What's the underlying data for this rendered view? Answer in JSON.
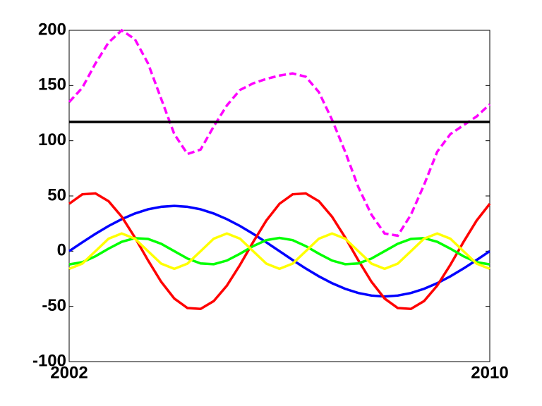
{
  "chart_data": {
    "type": "line",
    "x": [
      2002,
      2002.25,
      2002.5,
      2002.75,
      2003,
      2003.25,
      2003.5,
      2003.75,
      2004,
      2004.25,
      2004.5,
      2004.75,
      2005,
      2005.25,
      2005.5,
      2005.75,
      2006,
      2006.25,
      2006.5,
      2006.75,
      2007,
      2007.25,
      2007.5,
      2007.75,
      2008,
      2008.25,
      2008.5,
      2008.75,
      2009,
      2009.25,
      2009.5,
      2009.75,
      2010
    ],
    "series": [
      {
        "color": "#0000ff",
        "style": "solid",
        "values": [
          0,
          8,
          15.7,
          22.8,
          29,
          34.1,
          37.9,
          40.2,
          41,
          40.2,
          37.9,
          34.1,
          29,
          22.8,
          15.7,
          8,
          0,
          -8,
          -15.7,
          -22.8,
          -29,
          -34.1,
          -37.9,
          -40.2,
          -41,
          -40.2,
          -37.9,
          -34.1,
          -29,
          -22.8,
          -15.7,
          -8,
          0
        ]
      },
      {
        "color": "#ff0000",
        "style": "solid",
        "values": [
          42.9,
          51.5,
          52.3,
          45.2,
          31.2,
          12.4,
          -8.3,
          -27.7,
          -42.9,
          -51.5,
          -52.3,
          -45.2,
          -31.2,
          -12.4,
          8.3,
          27.7,
          42.9,
          51.5,
          52.3,
          45.2,
          31.2,
          12.4,
          -8.3,
          -27.7,
          -42.9,
          -51.5,
          -52.3,
          -45.2,
          -31.2,
          -12.4,
          8.3,
          27.7,
          42.9
        ]
      },
      {
        "color": "#00ff00",
        "style": "solid",
        "values": [
          -12,
          -10,
          -4.6,
          2.3,
          8.5,
          11.8,
          11.1,
          6.7,
          0,
          -6.7,
          -11.1,
          -11.8,
          -8.5,
          -2.3,
          4.6,
          10,
          12,
          10,
          4.6,
          -2.3,
          -8.5,
          -11.8,
          -11.1,
          -6.7,
          0,
          6.7,
          11.1,
          11.8,
          8.5,
          2.3,
          -4.6,
          -10,
          -12
        ]
      },
      {
        "color": "#ffff00",
        "style": "solid",
        "values": [
          -16,
          -11.3,
          0,
          11.3,
          16,
          11.3,
          0,
          -11.3,
          -16,
          -11.3,
          0,
          11.3,
          16,
          11.3,
          0,
          -11.3,
          -16,
          -11.3,
          0,
          11.3,
          16,
          11.3,
          0,
          -11.3,
          -16,
          -11.3,
          0,
          11.3,
          16,
          11.3,
          0,
          -11.3,
          -16
        ]
      },
      {
        "color": "#ff00ff",
        "style": "dashed",
        "values": [
          135,
          148,
          170,
          189,
          200,
          192,
          170,
          138,
          106,
          88,
          92,
          113,
          132,
          146,
          152,
          156,
          159,
          161,
          158,
          144,
          119,
          90,
          58,
          33,
          16,
          14,
          33,
          60,
          90,
          106,
          114,
          122,
          133
        ]
      },
      {
        "color": "#000000",
        "style": "solid",
        "values": [
          117,
          117,
          117,
          117,
          117,
          117,
          117,
          117,
          117,
          117,
          117,
          117,
          117,
          117,
          117,
          117,
          117,
          117,
          117,
          117,
          117,
          117,
          117,
          117,
          117,
          117,
          117,
          117,
          117,
          117,
          117,
          117,
          117
        ]
      }
    ],
    "xlim": [
      2002,
      2010
    ],
    "xticks": [
      2002,
      2010
    ],
    "ylim": [
      -100,
      200
    ],
    "yticks": [
      -100,
      -50,
      0,
      50,
      100,
      150,
      200
    ]
  }
}
